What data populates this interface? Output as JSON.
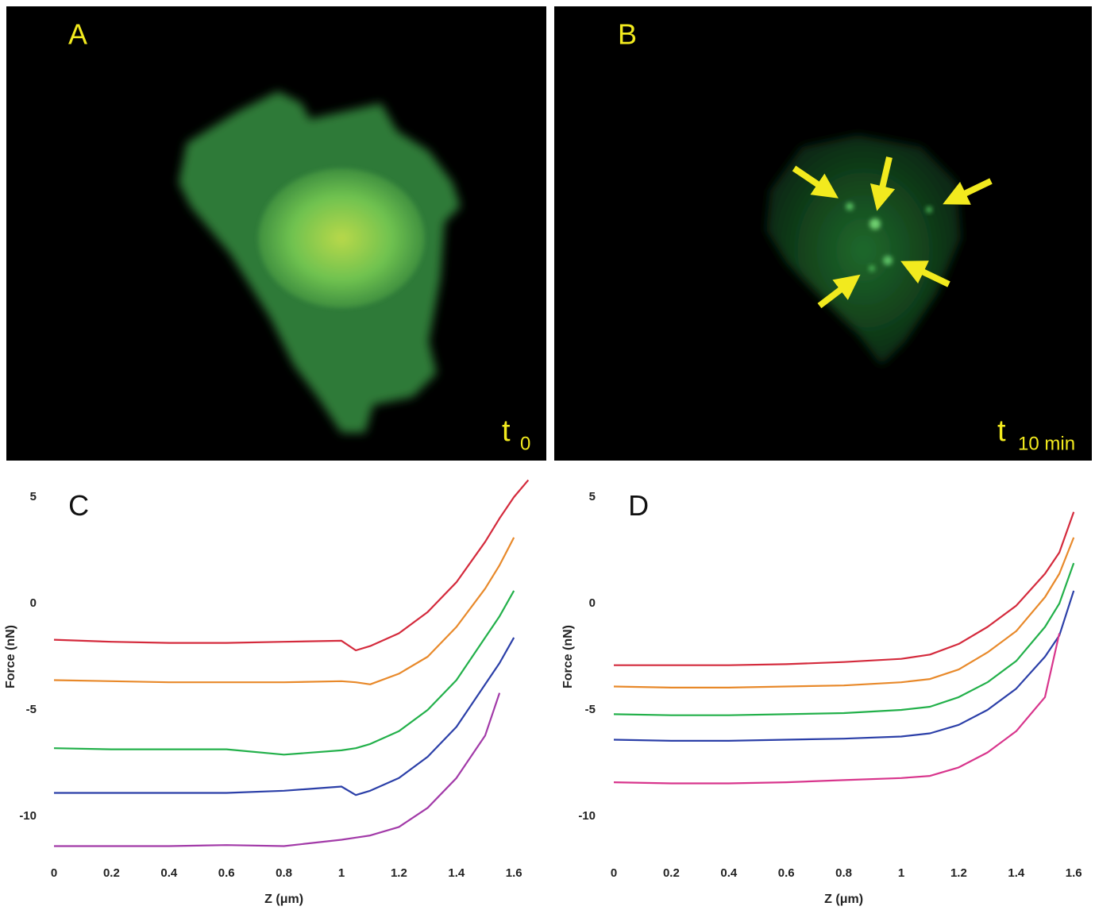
{
  "panels": [
    {
      "label": "A",
      "time": "t",
      "time_sub": "0"
    },
    {
      "label": "B",
      "time": "t",
      "time_sub": "10 min"
    }
  ],
  "chart_data": [
    {
      "type": "line",
      "panel_label": "C",
      "y_label": "Force (nN)",
      "x_label": "Z (μm)",
      "x": [
        0,
        0.2,
        0.4,
        0.6,
        0.8,
        1.0,
        1.05,
        1.1,
        1.2,
        1.3,
        1.4,
        1.5,
        1.55,
        1.6,
        1.65
      ],
      "xlim": [
        -0.05,
        1.7
      ],
      "ylim": [
        -12,
        6
      ],
      "xticks": [
        0,
        0.2,
        0.4,
        0.6,
        0.8,
        1,
        1.2,
        1.4,
        1.6
      ],
      "yticks": [
        5,
        0,
        -5,
        -10
      ],
      "series": [
        {
          "color": "#d42a3c",
          "values": [
            -1.7,
            -1.8,
            -1.85,
            -1.85,
            -1.8,
            -1.75,
            -2.2,
            -2.0,
            -1.4,
            -0.4,
            1.0,
            2.9,
            4.0,
            5.0,
            5.8
          ]
        },
        {
          "color": "#e8892a",
          "values": [
            -3.6,
            -3.65,
            -3.7,
            -3.7,
            -3.7,
            -3.65,
            -3.7,
            -3.8,
            -3.3,
            -2.5,
            -1.1,
            0.7,
            1.8,
            3.1,
            null
          ]
        },
        {
          "color": "#22b04a",
          "values": [
            -6.8,
            -6.85,
            -6.85,
            -6.85,
            -7.1,
            -6.9,
            -6.8,
            -6.6,
            -6.0,
            -5.0,
            -3.6,
            -1.6,
            -0.6,
            0.6,
            null
          ]
        },
        {
          "color": "#2b3fa8",
          "values": [
            -8.9,
            -8.9,
            -8.9,
            -8.9,
            -8.8,
            -8.6,
            -9.0,
            -8.8,
            -8.2,
            -7.2,
            -5.8,
            -3.8,
            -2.8,
            -1.6,
            null
          ]
        },
        {
          "color": "#a23aa8",
          "values": [
            -11.4,
            -11.4,
            -11.4,
            -11.35,
            -11.4,
            -11.1,
            -11.0,
            -10.9,
            -10.5,
            -9.6,
            -8.2,
            -6.2,
            -4.2,
            null,
            null
          ]
        }
      ]
    },
    {
      "type": "line",
      "panel_label": "D",
      "y_label": "Force (nN)",
      "x_label": "Z (μm)",
      "x": [
        0,
        0.2,
        0.4,
        0.6,
        0.8,
        1.0,
        1.1,
        1.2,
        1.3,
        1.4,
        1.5,
        1.55,
        1.6
      ],
      "xlim": [
        -0.05,
        1.7
      ],
      "ylim": [
        -12,
        6
      ],
      "xticks": [
        0,
        0.2,
        0.4,
        0.6,
        0.8,
        1,
        1.2,
        1.4,
        1.6
      ],
      "yticks": [
        5,
        0,
        -5,
        -10
      ],
      "series": [
        {
          "color": "#d42a3c",
          "values": [
            -2.9,
            -2.9,
            -2.9,
            -2.85,
            -2.75,
            -2.6,
            -2.4,
            -1.9,
            -1.1,
            -0.1,
            1.4,
            2.4,
            4.3
          ]
        },
        {
          "color": "#e8892a",
          "values": [
            -3.9,
            -3.95,
            -3.95,
            -3.9,
            -3.85,
            -3.7,
            -3.55,
            -3.1,
            -2.3,
            -1.3,
            0.3,
            1.4,
            3.1
          ]
        },
        {
          "color": "#22b04a",
          "values": [
            -5.2,
            -5.25,
            -5.25,
            -5.2,
            -5.15,
            -5.0,
            -4.85,
            -4.4,
            -3.7,
            -2.7,
            -1.1,
            0.0,
            1.9
          ]
        },
        {
          "color": "#2b3fa8",
          "values": [
            -6.4,
            -6.45,
            -6.45,
            -6.4,
            -6.35,
            -6.25,
            -6.1,
            -5.7,
            -5.0,
            -4.0,
            -2.5,
            -1.5,
            0.6
          ]
        },
        {
          "color": "#d8358c",
          "values": [
            -8.4,
            -8.45,
            -8.45,
            -8.4,
            -8.3,
            -8.2,
            -8.1,
            -7.7,
            -7.0,
            -6.0,
            -4.4,
            -1.4,
            null
          ]
        }
      ]
    }
  ]
}
